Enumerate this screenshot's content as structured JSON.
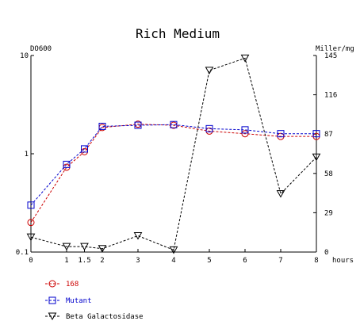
{
  "chart_data": {
    "type": "line",
    "title": "Rich Medium",
    "left_axis": {
      "label": "DO600",
      "scale": "log",
      "range": [
        0.1,
        10
      ],
      "ticks": [
        {
          "value": 10,
          "label": "10"
        },
        {
          "value": 1,
          "label": "1"
        },
        {
          "value": 0.1,
          "label": "0.1"
        }
      ]
    },
    "right_axis": {
      "label": "Miller/mg",
      "scale": "linear",
      "range": [
        0,
        145
      ],
      "ticks": [
        {
          "value": 145,
          "label": "145"
        },
        {
          "value": 116,
          "label": "116"
        },
        {
          "value": 87,
          "label": "87"
        },
        {
          "value": 58,
          "label": "58"
        },
        {
          "value": 29,
          "label": "29"
        },
        {
          "value": 0,
          "label": "0"
        }
      ]
    },
    "x_axis": {
      "label": "hours",
      "range": [
        0,
        8
      ],
      "ticks": [
        {
          "value": 0,
          "label": "0"
        },
        {
          "value": 1,
          "label": "1"
        },
        {
          "value": 1.5,
          "label": "1.5"
        },
        {
          "value": 2,
          "label": "2"
        },
        {
          "value": 3,
          "label": "3"
        },
        {
          "value": 4,
          "label": "4"
        },
        {
          "value": 5,
          "label": "5"
        },
        {
          "value": 6,
          "label": "6"
        },
        {
          "value": 7,
          "label": "7"
        },
        {
          "value": 8,
          "label": "8"
        }
      ]
    },
    "series": [
      {
        "name": "168",
        "axis": "left",
        "color": "#cc0000",
        "marker": "circle",
        "points": [
          {
            "x": 0,
            "y": 0.2
          },
          {
            "x": 1,
            "y": 0.73
          },
          {
            "x": 1.5,
            "y": 1.05
          },
          {
            "x": 2,
            "y": 1.85
          },
          {
            "x": 3,
            "y": 2.0
          },
          {
            "x": 4,
            "y": 1.95
          },
          {
            "x": 5,
            "y": 1.7
          },
          {
            "x": 6,
            "y": 1.6
          },
          {
            "x": 7,
            "y": 1.5
          },
          {
            "x": 8,
            "y": 1.5
          }
        ]
      },
      {
        "name": "Mutant",
        "axis": "left",
        "color": "#0000cc",
        "marker": "square",
        "points": [
          {
            "x": 0,
            "y": 0.3
          },
          {
            "x": 1,
            "y": 0.78
          },
          {
            "x": 1.5,
            "y": 1.12
          },
          {
            "x": 2,
            "y": 1.9
          },
          {
            "x": 3,
            "y": 1.95
          },
          {
            "x": 4,
            "y": 1.98
          },
          {
            "x": 5,
            "y": 1.8
          },
          {
            "x": 6,
            "y": 1.75
          },
          {
            "x": 7,
            "y": 1.6
          },
          {
            "x": 8,
            "y": 1.6
          }
        ]
      },
      {
        "name": "Beta Galactosidase",
        "axis": "right",
        "color": "#000000",
        "marker": "triangle-down",
        "points": [
          {
            "x": 0,
            "y": 11
          },
          {
            "x": 1,
            "y": 4
          },
          {
            "x": 1.5,
            "y": 4
          },
          {
            "x": 2,
            "y": 2.5
          },
          {
            "x": 3,
            "y": 12
          },
          {
            "x": 4,
            "y": 1.5
          },
          {
            "x": 5,
            "y": 134
          },
          {
            "x": 6,
            "y": 143
          },
          {
            "x": 7,
            "y": 43
          },
          {
            "x": 8,
            "y": 70
          }
        ]
      }
    ],
    "legend_position": "bottom-left",
    "grid": false
  }
}
